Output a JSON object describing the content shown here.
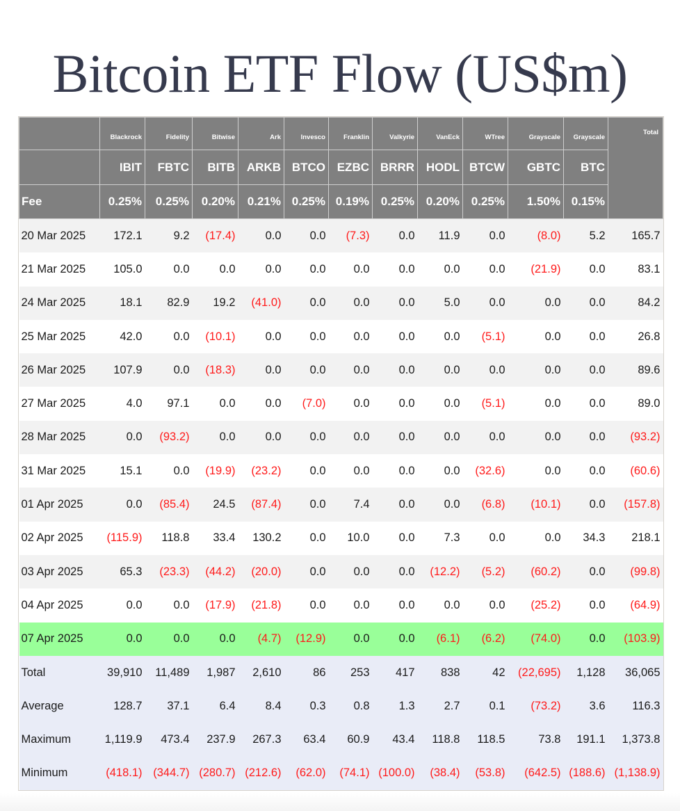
{
  "title": "Bitcoin ETF Flow (US$m)",
  "colors": {
    "header_bg": "#808080",
    "row_odd": "#f2f2f2",
    "row_even": "#ffffff",
    "highlight_row": "#99ff99",
    "summary_bg": "#e9ecf7",
    "negative": "#ff1a1a",
    "title": "#363a4d"
  },
  "table": {
    "issuers": [
      "Blackrock",
      "Fidelity",
      "Bitwise",
      "Ark",
      "Invesco",
      "Franklin",
      "Valkyrie",
      "VanEck",
      "WTree",
      "Grayscale",
      "Grayscale"
    ],
    "tickers": [
      "IBIT",
      "FBTC",
      "BITB",
      "ARKB",
      "BTCO",
      "EZBC",
      "BRRR",
      "HODL",
      "BTCW",
      "GBTC",
      "BTC"
    ],
    "total_header": "Total",
    "fee_label": "Fee",
    "fees": [
      "0.25%",
      "0.25%",
      "0.20%",
      "0.21%",
      "0.25%",
      "0.19%",
      "0.25%",
      "0.20%",
      "0.25%",
      "1.50%",
      "0.15%"
    ],
    "rows": [
      {
        "date": "20 Mar 2025",
        "values": [
          "172.1",
          "9.2",
          "(17.4)",
          "0.0",
          "0.0",
          "(7.3)",
          "0.0",
          "11.9",
          "0.0",
          "(8.0)",
          "5.2"
        ],
        "total": "165.7"
      },
      {
        "date": "21 Mar 2025",
        "values": [
          "105.0",
          "0.0",
          "0.0",
          "0.0",
          "0.0",
          "0.0",
          "0.0",
          "0.0",
          "0.0",
          "(21.9)",
          "0.0"
        ],
        "total": "83.1"
      },
      {
        "date": "24 Mar 2025",
        "values": [
          "18.1",
          "82.9",
          "19.2",
          "(41.0)",
          "0.0",
          "0.0",
          "0.0",
          "5.0",
          "0.0",
          "0.0",
          "0.0"
        ],
        "total": "84.2"
      },
      {
        "date": "25 Mar 2025",
        "values": [
          "42.0",
          "0.0",
          "(10.1)",
          "0.0",
          "0.0",
          "0.0",
          "0.0",
          "0.0",
          "(5.1)",
          "0.0",
          "0.0"
        ],
        "total": "26.8"
      },
      {
        "date": "26 Mar 2025",
        "values": [
          "107.9",
          "0.0",
          "(18.3)",
          "0.0",
          "0.0",
          "0.0",
          "0.0",
          "0.0",
          "0.0",
          "0.0",
          "0.0"
        ],
        "total": "89.6"
      },
      {
        "date": "27 Mar 2025",
        "values": [
          "4.0",
          "97.1",
          "0.0",
          "0.0",
          "(7.0)",
          "0.0",
          "0.0",
          "0.0",
          "(5.1)",
          "0.0",
          "0.0"
        ],
        "total": "89.0"
      },
      {
        "date": "28 Mar 2025",
        "values": [
          "0.0",
          "(93.2)",
          "0.0",
          "0.0",
          "0.0",
          "0.0",
          "0.0",
          "0.0",
          "0.0",
          "0.0",
          "0.0"
        ],
        "total": "(93.2)"
      },
      {
        "date": "31 Mar 2025",
        "values": [
          "15.1",
          "0.0",
          "(19.9)",
          "(23.2)",
          "0.0",
          "0.0",
          "0.0",
          "0.0",
          "(32.6)",
          "0.0",
          "0.0"
        ],
        "total": "(60.6)"
      },
      {
        "date": "01 Apr 2025",
        "values": [
          "0.0",
          "(85.4)",
          "24.5",
          "(87.4)",
          "0.0",
          "7.4",
          "0.0",
          "0.0",
          "(6.8)",
          "(10.1)",
          "0.0"
        ],
        "total": "(157.8)"
      },
      {
        "date": "02 Apr 2025",
        "values": [
          "(115.9)",
          "118.8",
          "33.4",
          "130.2",
          "0.0",
          "10.0",
          "0.0",
          "7.3",
          "0.0",
          "0.0",
          "34.3"
        ],
        "total": "218.1"
      },
      {
        "date": "03 Apr 2025",
        "values": [
          "65.3",
          "(23.3)",
          "(44.2)",
          "(20.0)",
          "0.0",
          "0.0",
          "0.0",
          "(12.2)",
          "(5.2)",
          "(60.2)",
          "0.0"
        ],
        "total": "(99.8)"
      },
      {
        "date": "04 Apr 2025",
        "values": [
          "0.0",
          "0.0",
          "(17.9)",
          "(21.8)",
          "0.0",
          "0.0",
          "0.0",
          "0.0",
          "0.0",
          "(25.2)",
          "0.0"
        ],
        "total": "(64.9)"
      },
      {
        "date": "07 Apr 2025",
        "values": [
          "0.0",
          "0.0",
          "0.0",
          "(4.7)",
          "(12.9)",
          "0.0",
          "0.0",
          "(6.1)",
          "(6.2)",
          "(74.0)",
          "0.0"
        ],
        "total": "(103.9)",
        "highlight": true
      }
    ],
    "summary": [
      {
        "label": "Total",
        "values": [
          "39,910",
          "11,489",
          "1,987",
          "2,610",
          "86",
          "253",
          "417",
          "838",
          "42",
          "(22,695)",
          "1,128"
        ],
        "total": "36,065"
      },
      {
        "label": "Average",
        "values": [
          "128.7",
          "37.1",
          "6.4",
          "8.4",
          "0.3",
          "0.8",
          "1.3",
          "2.7",
          "0.1",
          "(73.2)",
          "3.6"
        ],
        "total": "116.3"
      },
      {
        "label": "Maximum",
        "values": [
          "1,119.9",
          "473.4",
          "237.9",
          "267.3",
          "63.4",
          "60.9",
          "43.4",
          "118.8",
          "118.5",
          "73.8",
          "191.1"
        ],
        "total": "1,373.8"
      },
      {
        "label": "Minimum",
        "values": [
          "(418.1)",
          "(344.7)",
          "(280.7)",
          "(212.6)",
          "(62.0)",
          "(74.1)",
          "(100.0)",
          "(38.4)",
          "(53.8)",
          "(642.5)",
          "(188.6)"
        ],
        "total": "(1,138.9)"
      }
    ]
  }
}
